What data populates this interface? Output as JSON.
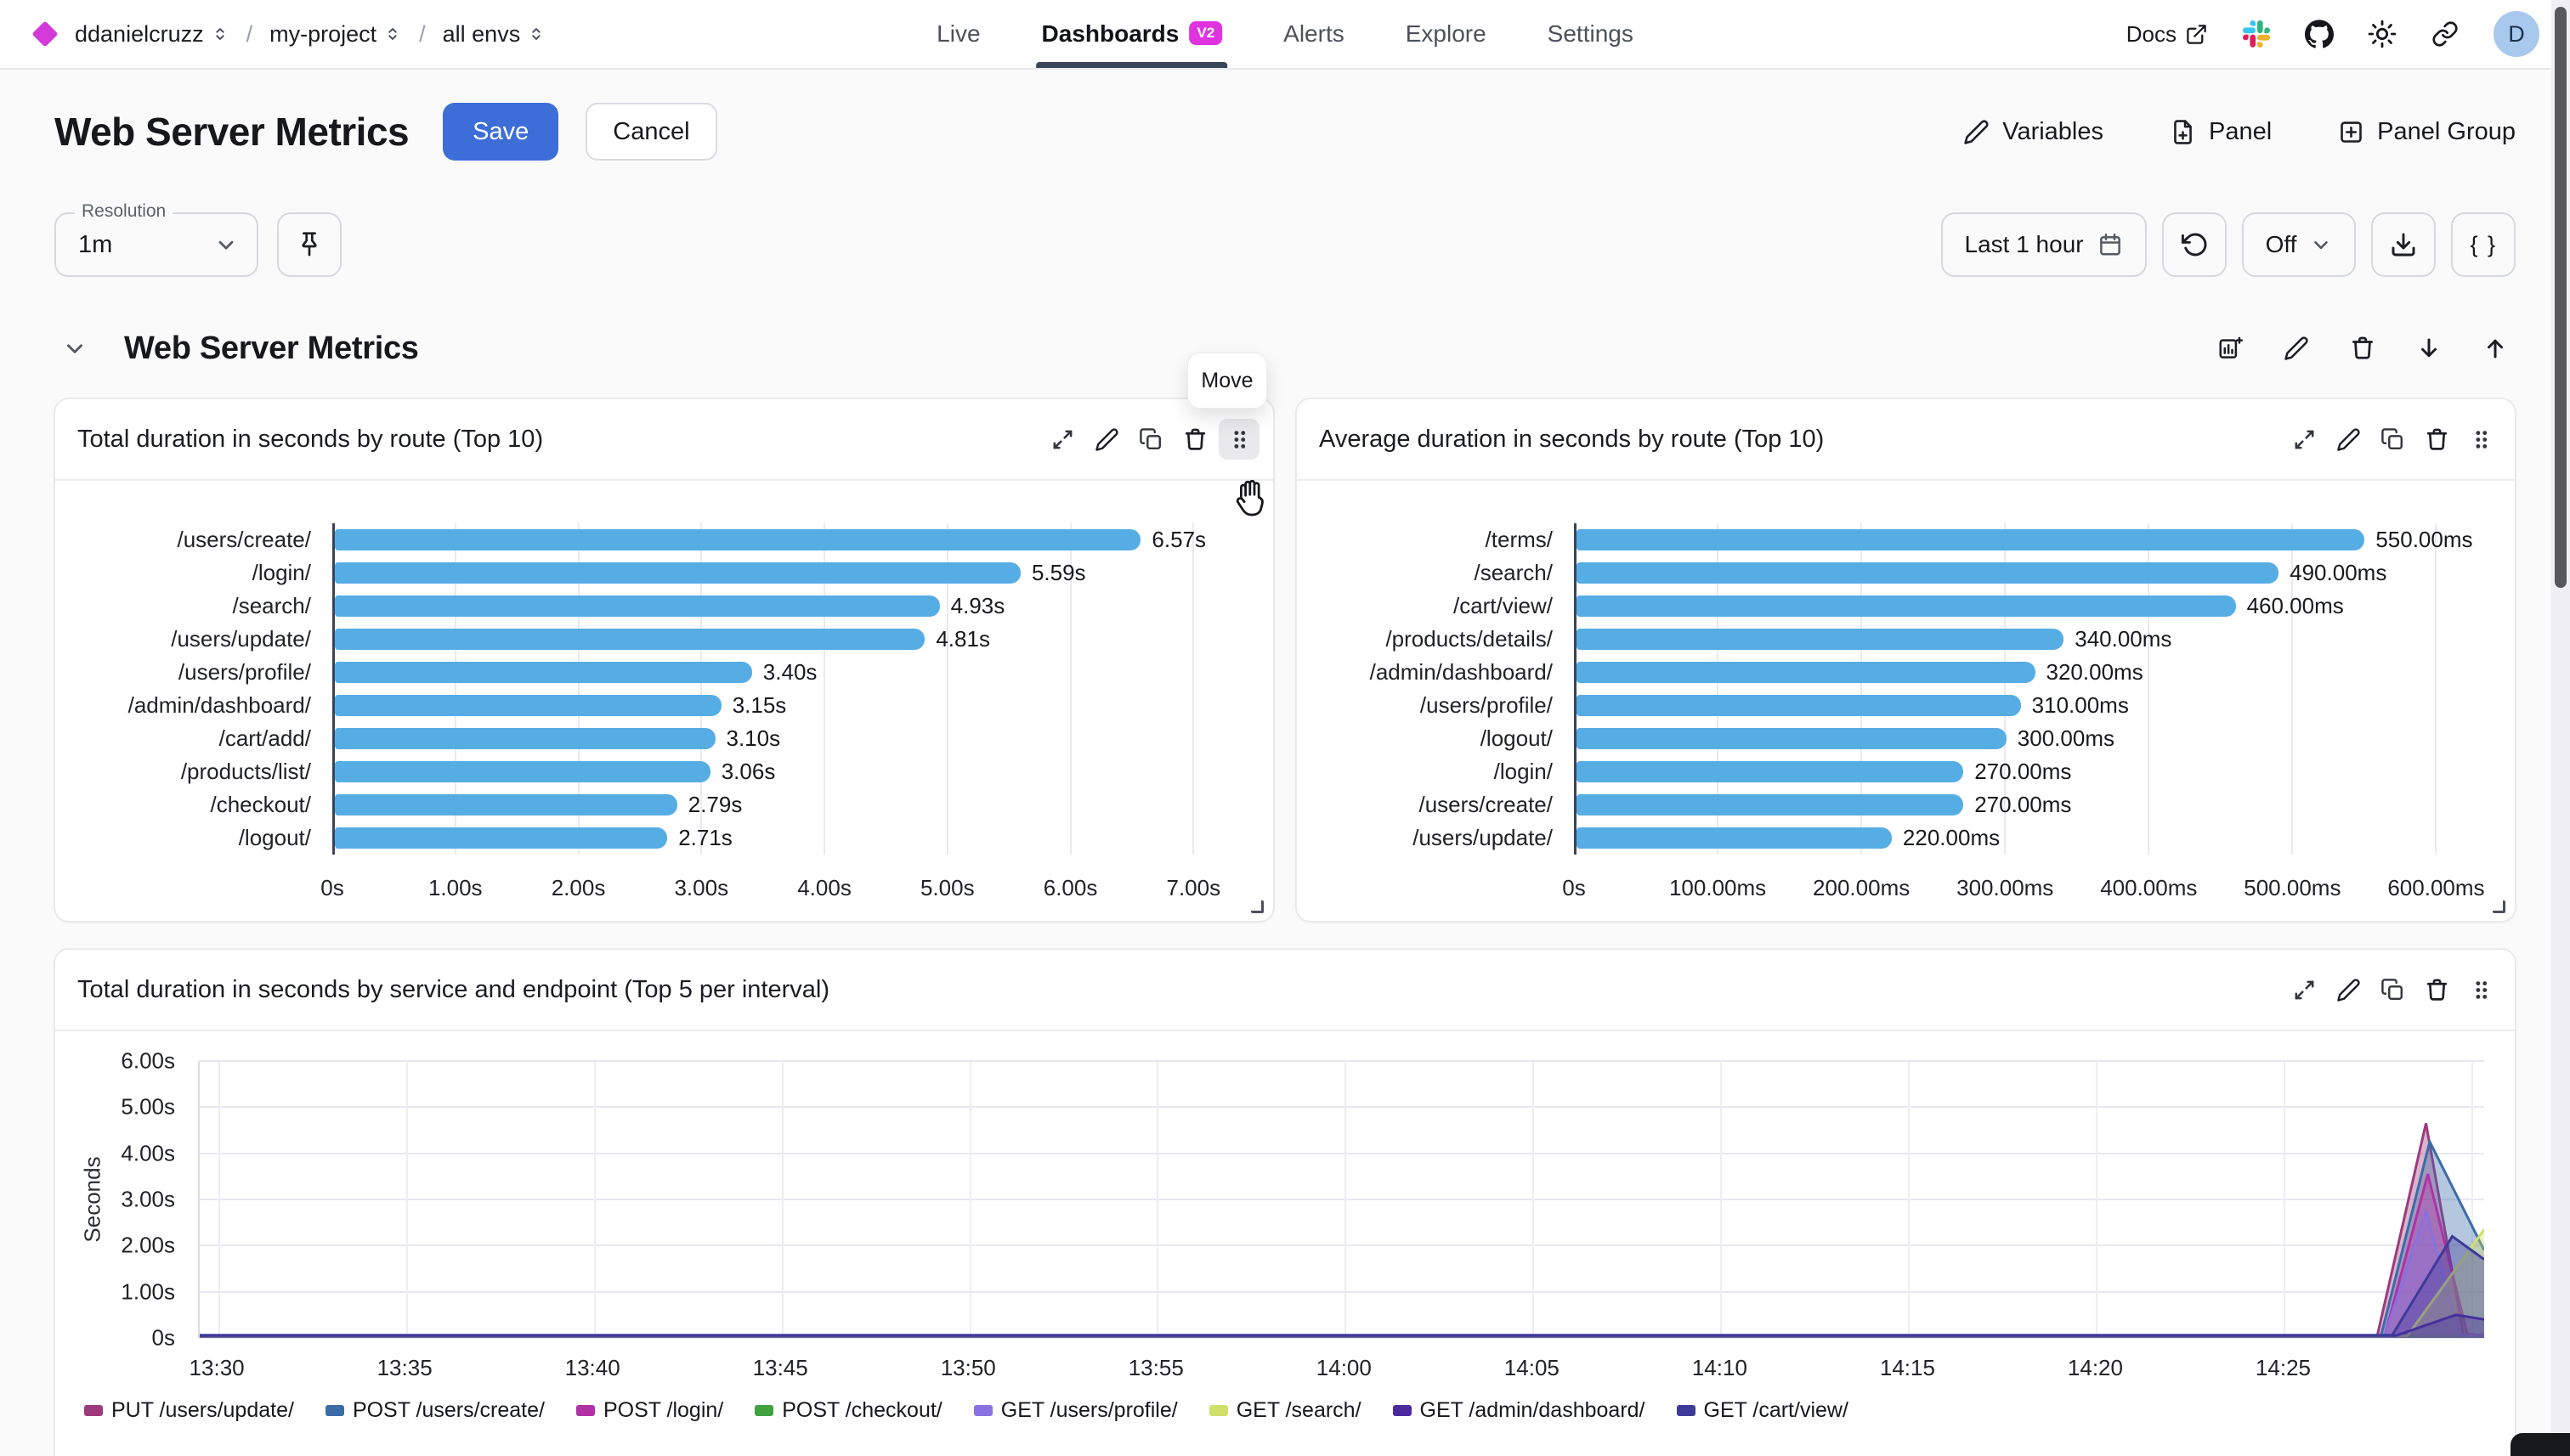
{
  "topbar": {
    "org": "ddanielcruzz",
    "project": "my-project",
    "environment": "all envs",
    "nav": [
      {
        "label": "Live",
        "active": false
      },
      {
        "label": "Dashboards",
        "badge": "V2",
        "active": true
      },
      {
        "label": "Alerts",
        "active": false
      },
      {
        "label": "Explore",
        "active": false
      },
      {
        "label": "Settings",
        "active": false
      }
    ],
    "docs_label": "Docs",
    "avatar_initial": "D",
    "icons": [
      "external-link",
      "slack",
      "github",
      "theme-sun",
      "share-link"
    ]
  },
  "header": {
    "title": "Web Server Metrics",
    "save_label": "Save",
    "cancel_label": "Cancel",
    "actions": [
      {
        "label": "Variables",
        "icon": "pencil"
      },
      {
        "label": "Panel",
        "icon": "file-plus"
      },
      {
        "label": "Panel Group",
        "icon": "square-plus"
      }
    ]
  },
  "controls": {
    "resolution_label": "Resolution",
    "resolution_value": "1m",
    "pin_icon": "pin",
    "time_range": "Last 1 hour",
    "time_range_icon": "calendar",
    "refresh_icon": "rotate-ccw",
    "auto_refresh": "Off",
    "download_icon": "download",
    "braces_label": "{ }"
  },
  "section": {
    "title": "Web Server Metrics",
    "move_tooltip": "Move",
    "toolbar_icons": [
      "add-panel",
      "edit",
      "delete",
      "move-down",
      "move-up"
    ]
  },
  "panel_toolbar_icons": [
    "expand",
    "edit",
    "duplicate",
    "delete",
    "drag-handle"
  ],
  "colors": {
    "accent_blue": "#3d6ed8",
    "bar_blue": "#56ade4",
    "badge_magenta": "#df33df",
    "brand_diamond": "#d43ad9",
    "nav_underline": "#3a4659",
    "avatar_bg": "#a9c8ee"
  },
  "chart_data": [
    {
      "type": "bar",
      "orientation": "horizontal",
      "title": "Total duration in seconds by route (Top 10)",
      "categories": [
        "/users/create/",
        "/login/",
        "/search/",
        "/users/update/",
        "/users/profile/",
        "/admin/dashboard/",
        "/cart/add/",
        "/products/list/",
        "/checkout/",
        "/logout/"
      ],
      "values": [
        6.57,
        5.59,
        4.93,
        4.81,
        3.4,
        3.15,
        3.1,
        3.06,
        2.79,
        2.71
      ],
      "value_labels": [
        "6.57s",
        "5.59s",
        "4.93s",
        "4.81s",
        "3.40s",
        "3.15s",
        "3.10s",
        "3.06s",
        "2.79s",
        "2.71s"
      ],
      "axis_ticks": [
        "0s",
        "1.00s",
        "2.00s",
        "3.00s",
        "4.00s",
        "5.00s",
        "6.00s",
        "7.00s"
      ],
      "tick_values": [
        0,
        1,
        2,
        3,
        4,
        5,
        6,
        7
      ],
      "axis_max": 7.44,
      "unit": "seconds",
      "bar_color": "#56ade4",
      "grid": true
    },
    {
      "type": "bar",
      "orientation": "horizontal",
      "title": "Average duration in seconds by route (Top 10)",
      "categories": [
        "/terms/",
        "/search/",
        "/cart/view/",
        "/products/details/",
        "/admin/dashboard/",
        "/users/profile/",
        "/logout/",
        "/login/",
        "/users/create/",
        "/users/update/"
      ],
      "values": [
        550,
        490,
        460,
        340,
        320,
        310,
        300,
        270,
        270,
        220
      ],
      "value_labels": [
        "550.00ms",
        "490.00ms",
        "460.00ms",
        "340.00ms",
        "320.00ms",
        "310.00ms",
        "300.00ms",
        "270.00ms",
        "270.00ms",
        "220.00ms"
      ],
      "axis_ticks": [
        "0s",
        "100.00ms",
        "200.00ms",
        "300.00ms",
        "400.00ms",
        "500.00ms",
        "600.00ms"
      ],
      "tick_values": [
        0,
        100,
        200,
        300,
        400,
        500,
        600
      ],
      "axis_max": 637,
      "unit": "milliseconds",
      "bar_color": "#56ade4",
      "grid": true
    },
    {
      "type": "area",
      "title": "Total duration in seconds by service and endpoint (Top 5 per interval)",
      "ylabel": "Seconds",
      "ymax": 6,
      "ytick_values": [
        0,
        1,
        2,
        3,
        4,
        5,
        6
      ],
      "ytick_labels": [
        "0s",
        "1.00s",
        "2.00s",
        "3.00s",
        "4.00s",
        "5.00s",
        "6.00s"
      ],
      "xtick_labels": [
        "13:30",
        "13:35",
        "13:40",
        "13:45",
        "13:50",
        "13:55",
        "14:00",
        "14:05",
        "14:10",
        "14:15",
        "14:20",
        "14:25"
      ],
      "xtick_minutes": [
        0,
        5,
        10,
        15,
        20,
        25,
        30,
        35,
        40,
        45,
        50,
        55
      ],
      "xgrid_minutes": [
        0,
        5,
        10,
        15,
        20,
        25,
        30,
        35,
        40,
        45,
        50,
        55,
        60
      ],
      "xmin_minutes": -0.5,
      "xmax_minutes": 60.35,
      "grid": true,
      "legend_position": "bottom",
      "series": [
        {
          "name": "PUT /users/update/",
          "color": "#9d3a7c",
          "points": [
            [
              -0.5,
              0.04
            ],
            [
              57.5,
              0.04
            ],
            [
              58.8,
              4.65
            ],
            [
              59.8,
              0.06
            ],
            [
              60.35,
              0.05
            ]
          ]
        },
        {
          "name": "POST /users/create/",
          "color": "#3c6ca8",
          "points": [
            [
              -0.5,
              0.04
            ],
            [
              57.6,
              0.04
            ],
            [
              58.9,
              4.25
            ],
            [
              60.35,
              1.9
            ]
          ]
        },
        {
          "name": "POST /login/",
          "color": "#b231a5",
          "points": [
            [
              -0.5,
              0.04
            ],
            [
              57.7,
              0.04
            ],
            [
              58.85,
              3.55
            ],
            [
              59.9,
              0.08
            ],
            [
              60.35,
              0.06
            ]
          ]
        },
        {
          "name": "POST /checkout/",
          "color": "#3fa23f",
          "points": [
            [
              -0.5,
              0.03
            ],
            [
              60.35,
              0.03
            ]
          ]
        },
        {
          "name": "GET /users/profile/",
          "color": "#8871e0",
          "points": [
            [
              -0.5,
              0.05
            ],
            [
              57.7,
              0.05
            ],
            [
              58.8,
              2.75
            ],
            [
              59.7,
              0.06
            ],
            [
              60.35,
              0.05
            ]
          ]
        },
        {
          "name": "GET /search/",
          "color": "#cfe06a",
          "points": [
            [
              -0.5,
              0.04
            ],
            [
              58.3,
              0.04
            ],
            [
              60.35,
              2.35
            ]
          ]
        },
        {
          "name": "GET /admin/dashboard/",
          "color": "#4b2a9d",
          "points": [
            [
              -0.5,
              0.05
            ],
            [
              58.0,
              0.05
            ],
            [
              59.6,
              0.5
            ],
            [
              60.35,
              0.4
            ]
          ]
        },
        {
          "name": "GET /cart/view/",
          "color": "#3d3a9a",
          "points": [
            [
              -0.5,
              0.06
            ],
            [
              57.9,
              0.06
            ],
            [
              59.5,
              2.2
            ],
            [
              60.35,
              1.7
            ]
          ]
        }
      ]
    }
  ]
}
